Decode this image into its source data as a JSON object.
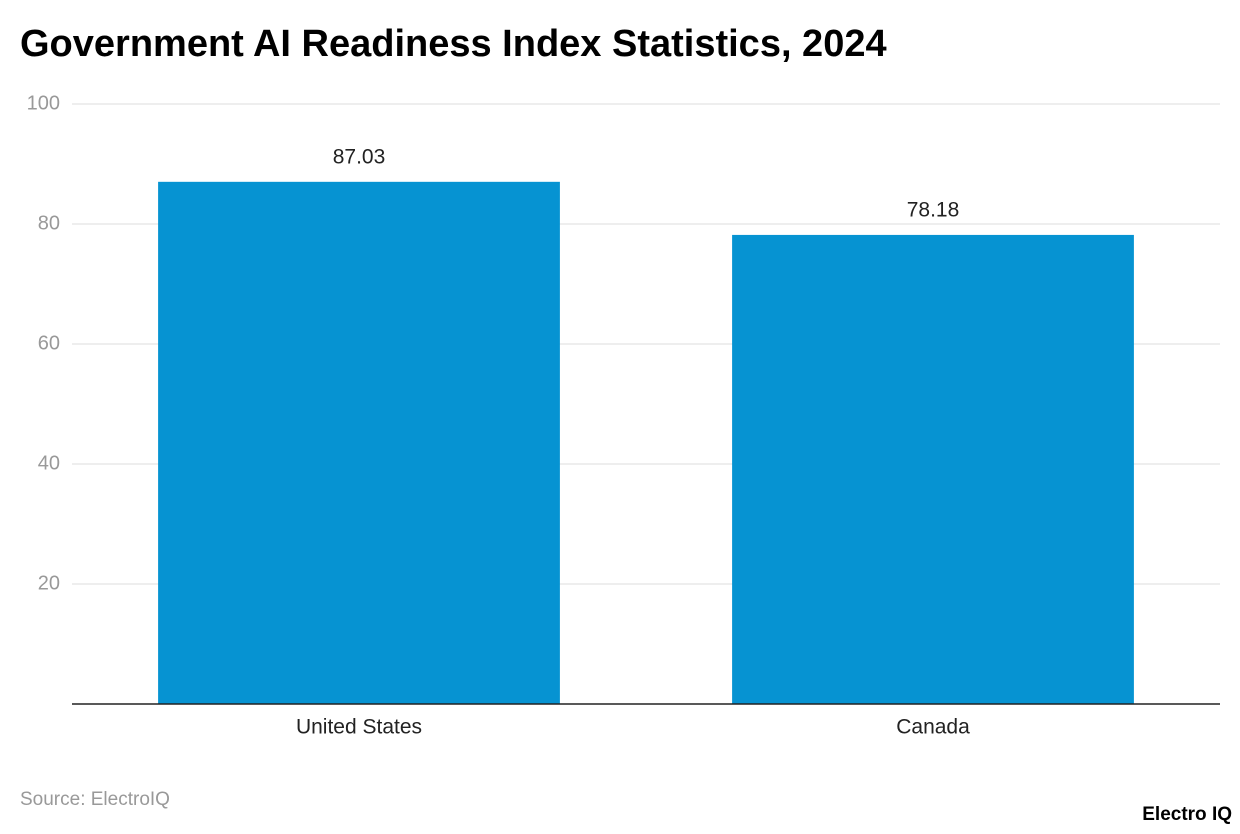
{
  "chart_data": {
    "type": "bar",
    "title": "Government AI Readiness Index Statistics, 2024",
    "categories": [
      "United States",
      "Canada"
    ],
    "values": [
      87.03,
      78.18
    ],
    "color": "#0693d2",
    "ylim": [
      0,
      100
    ],
    "yticks": [
      20,
      40,
      60,
      80,
      100
    ],
    "grid": true,
    "source": "Source: ElectroIQ",
    "logo": "Electro IQ"
  }
}
